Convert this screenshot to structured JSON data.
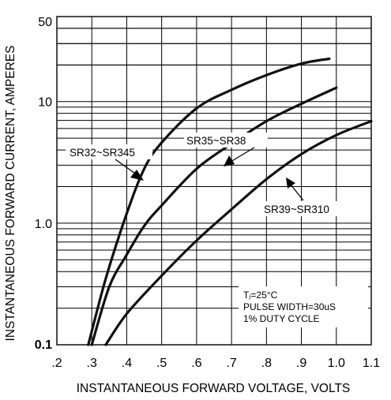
{
  "chart_data": {
    "type": "line",
    "xlabel": "INSTANTANEOUS FORWARD VOLTAGE, VOLTS",
    "ylabel": "INSTANTANEOUS FORWARD CURRENT, AMPERES",
    "xlim": [
      0.2,
      1.1
    ],
    "ylim": [
      0.1,
      50
    ],
    "yscale": "log",
    "grid": true,
    "x_tick_labels": [
      ".2",
      ".3",
      ".4",
      ".5",
      ".6",
      ".7",
      ".8",
      ".9",
      "1.0",
      "1.1"
    ],
    "y_tick_labels": [
      {
        "value": 0.1,
        "label": "0.1"
      },
      {
        "value": 1.0,
        "label": "1.0"
      },
      {
        "value": 10,
        "label": "10"
      },
      {
        "value": 50,
        "label": "50"
      }
    ],
    "series": [
      {
        "name": "SR32~SR345",
        "x": [
          0.29,
          0.34,
          0.4,
          0.45,
          0.5,
          0.6,
          0.7,
          0.8,
          0.9,
          0.98
        ],
        "y": [
          0.1,
          0.35,
          1.2,
          2.8,
          4.6,
          8.8,
          12.5,
          16.5,
          20.5,
          22.5
        ]
      },
      {
        "name": "SR35~SR38",
        "x": [
          0.3,
          0.35,
          0.4,
          0.45,
          0.5,
          0.6,
          0.7,
          0.8,
          0.9,
          1.0
        ],
        "y": [
          0.1,
          0.3,
          0.55,
          0.95,
          1.4,
          2.8,
          4.5,
          6.9,
          9.6,
          13
        ]
      },
      {
        "name": "SR39~SR310",
        "x": [
          0.34,
          0.4,
          0.5,
          0.6,
          0.7,
          0.8,
          0.9,
          1.0,
          1.1
        ],
        "y": [
          0.1,
          0.18,
          0.37,
          0.72,
          1.3,
          2.3,
          3.7,
          5.3,
          6.9
        ]
      }
    ],
    "annotations": {
      "conditions": [
        "Tⱼ=25°C",
        "PULSE WIDTH=30uS",
        "1% DUTY CYCLE"
      ]
    }
  }
}
